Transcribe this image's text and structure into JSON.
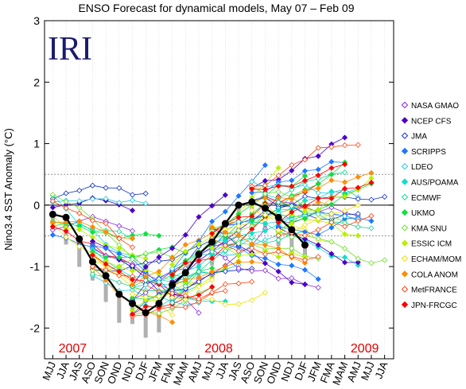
{
  "chart_data": {
    "type": "line",
    "title": "ENSO Forecast for dynamical models, May 07 – Feb 09",
    "logo_text": "IRI",
    "ylabel": "Nino3.4 SST Anomaly (°C)",
    "ylim": [
      -2.5,
      3
    ],
    "yticks": [
      "-2",
      "-1",
      "0",
      "1",
      "2",
      "3"
    ],
    "ytick_values": [
      -2,
      -1,
      0,
      1,
      2,
      3
    ],
    "reference_lines": [
      0.5,
      -0.5
    ],
    "categories": [
      "MJJ",
      "JJA",
      "JAS",
      "ASO",
      "SON",
      "OND",
      "NDJ",
      "DJF",
      "JFM",
      "FMA",
      "MAM",
      "AMJ",
      "MJJ",
      "JJA",
      "JAS",
      "ASO",
      "SON",
      "OND",
      "NDJ",
      "DJF",
      "JFM",
      "FMA",
      "MAM",
      "AMJ",
      "MJJ",
      "JJA"
    ],
    "year_labels": [
      {
        "text": "2007",
        "at": 1.5
      },
      {
        "text": "2008",
        "at": 12.5
      },
      {
        "text": "2009",
        "at": 23.5
      }
    ],
    "observed": {
      "values": [
        -0.15,
        -0.2,
        -0.55,
        -0.92,
        -1.15,
        -1.45,
        -1.6,
        -1.75,
        -1.6,
        -1.3,
        -1.1,
        -0.8,
        -0.6,
        -0.3,
        0.0,
        0.05,
        -0.05,
        -0.2,
        -0.4,
        -0.65
      ],
      "color": "#000000",
      "spread_color": "#b0b0b0"
    },
    "series": [
      {
        "name": "NASA GMAO",
        "color": "#8a2be2",
        "marker": "diamond-open"
      },
      {
        "name": "NCEP CFS",
        "color": "#4b00c8",
        "marker": "diamond"
      },
      {
        "name": "JMA",
        "color": "#1030c8",
        "marker": "diamond-open"
      },
      {
        "name": "SCRIPPS",
        "color": "#1e78ff",
        "marker": "diamond"
      },
      {
        "name": "LDEO",
        "color": "#20c8e0",
        "marker": "diamond-open"
      },
      {
        "name": "AUS/POAMA",
        "color": "#10e0c8",
        "marker": "diamond"
      },
      {
        "name": "ECMWF",
        "color": "#10d890",
        "marker": "diamond-open"
      },
      {
        "name": "UKMO",
        "color": "#10e040",
        "marker": "diamond"
      },
      {
        "name": "KMA SNU",
        "color": "#70e030",
        "marker": "diamond-open"
      },
      {
        "name": "ESSIC ICM",
        "color": "#b8f000",
        "marker": "diamond"
      },
      {
        "name": "ECHAM/MOM",
        "color": "#f0e000",
        "marker": "diamond-open"
      },
      {
        "name": "COLA ANOM",
        "color": "#ff8c00",
        "marker": "diamond"
      },
      {
        "name": "MetFRANCE",
        "color": "#ff4010",
        "marker": "diamond-open"
      },
      {
        "name": "JPN-FRCGC",
        "color": "#ff0000",
        "marker": "diamond"
      }
    ],
    "legend_position": "right",
    "grid": true
  }
}
